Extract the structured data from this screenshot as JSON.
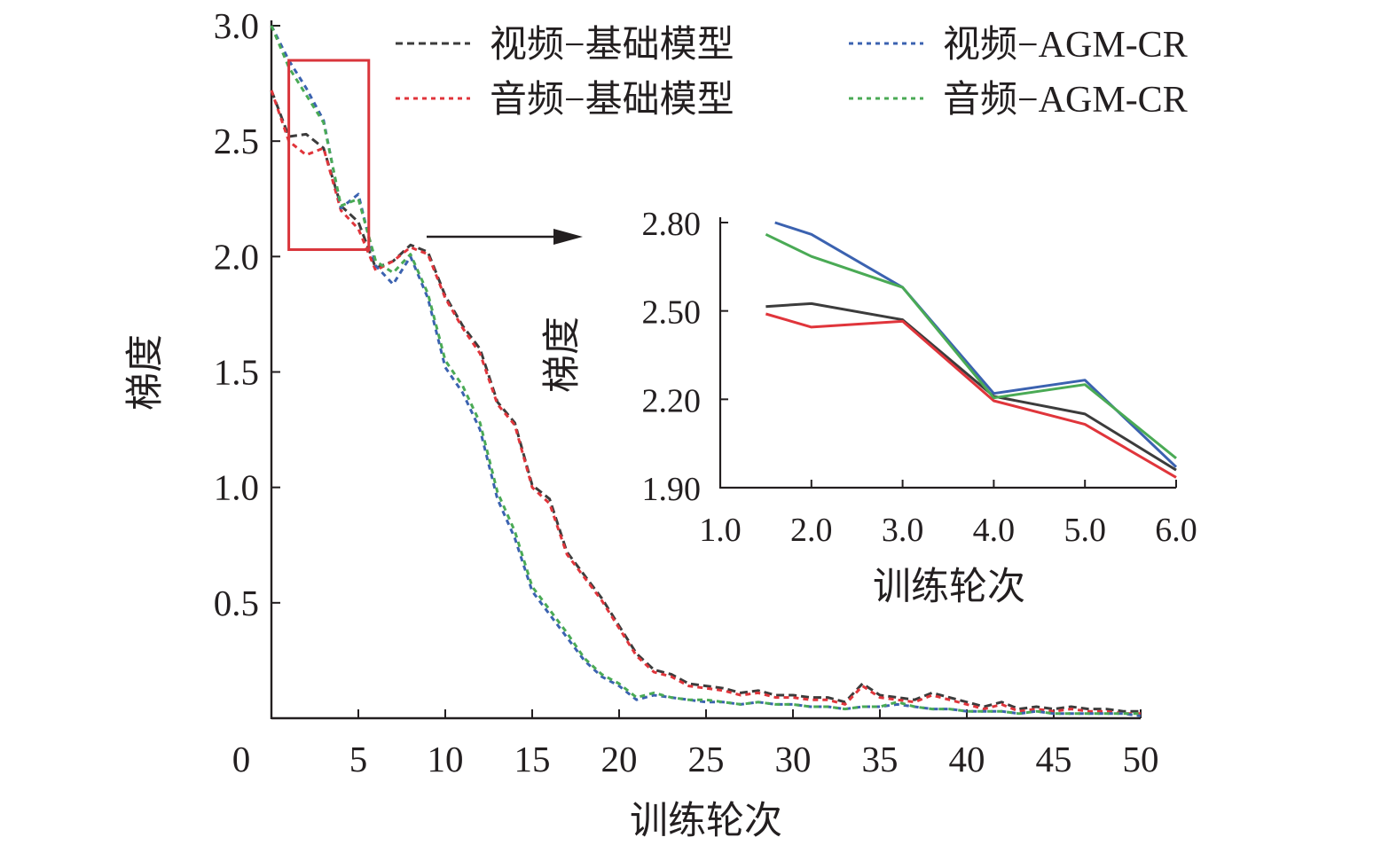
{
  "chart_data": [
    {
      "id": "main",
      "type": "line",
      "xlabel": "训练轮次",
      "ylabel": "梯度",
      "xlim": [
        0,
        50
      ],
      "ylim": [
        0,
        3.0
      ],
      "xticks": [
        0,
        5,
        10,
        15,
        20,
        25,
        30,
        35,
        40,
        45,
        50
      ],
      "xtick_labels": [
        "0",
        "5",
        "10",
        "15",
        "20",
        "25",
        "30",
        "35",
        "40",
        "45",
        "50"
      ],
      "yticks": [
        0.5,
        1.0,
        1.5,
        2.0,
        2.5,
        3.0
      ],
      "ytick_labels": [
        "0.5",
        "1.0",
        "1.5",
        "2.0",
        "2.5",
        "3.0"
      ],
      "series": [
        {
          "name": "视频−基础模型",
          "color": "#3c3c3c",
          "style": "dashed",
          "x": [
            0,
            1,
            2,
            3,
            4,
            5,
            6,
            7,
            8,
            9,
            10,
            11,
            12,
            13,
            14,
            15,
            16,
            17,
            18,
            19,
            20,
            21,
            22,
            23,
            24,
            25,
            26,
            27,
            28,
            29,
            30,
            31,
            32,
            33,
            34,
            35,
            36,
            37,
            38,
            39,
            40,
            41,
            42,
            43,
            44,
            45,
            46,
            47,
            48,
            49,
            50
          ],
          "values": [
            2.72,
            2.52,
            2.53,
            2.47,
            2.22,
            2.15,
            1.95,
            1.98,
            2.05,
            2.02,
            1.83,
            1.7,
            1.6,
            1.37,
            1.28,
            1.01,
            0.95,
            0.72,
            0.62,
            0.52,
            0.4,
            0.28,
            0.21,
            0.19,
            0.15,
            0.14,
            0.13,
            0.11,
            0.12,
            0.1,
            0.1,
            0.09,
            0.09,
            0.07,
            0.15,
            0.1,
            0.09,
            0.08,
            0.11,
            0.09,
            0.07,
            0.05,
            0.07,
            0.04,
            0.05,
            0.04,
            0.05,
            0.04,
            0.04,
            0.03,
            0.03
          ]
        },
        {
          "name": "音频−基础模型",
          "color": "#e0353b",
          "style": "dotted",
          "x": [
            0,
            1,
            2,
            3,
            4,
            5,
            6,
            7,
            8,
            9,
            10,
            11,
            12,
            13,
            14,
            15,
            16,
            17,
            18,
            19,
            20,
            21,
            22,
            23,
            24,
            25,
            26,
            27,
            28,
            29,
            30,
            31,
            32,
            33,
            34,
            35,
            36,
            37,
            38,
            39,
            40,
            41,
            42,
            43,
            44,
            45,
            46,
            47,
            48,
            49,
            50
          ],
          "values": [
            2.72,
            2.5,
            2.44,
            2.47,
            2.2,
            2.12,
            1.94,
            1.98,
            2.04,
            2.01,
            1.82,
            1.69,
            1.58,
            1.36,
            1.27,
            1.0,
            0.93,
            0.71,
            0.61,
            0.51,
            0.39,
            0.27,
            0.2,
            0.18,
            0.14,
            0.13,
            0.12,
            0.1,
            0.11,
            0.09,
            0.09,
            0.08,
            0.08,
            0.06,
            0.14,
            0.09,
            0.08,
            0.07,
            0.1,
            0.08,
            0.06,
            0.04,
            0.06,
            0.03,
            0.04,
            0.03,
            0.04,
            0.03,
            0.03,
            0.02,
            0.02
          ]
        },
        {
          "name": "视频−AGM-CR",
          "color": "#3b62b0",
          "style": "dotted",
          "x": [
            0,
            1,
            2,
            3,
            4,
            5,
            6,
            7,
            8,
            9,
            10,
            11,
            12,
            13,
            14,
            15,
            16,
            17,
            18,
            19,
            20,
            21,
            22,
            23,
            24,
            25,
            26,
            27,
            28,
            29,
            30,
            31,
            32,
            33,
            34,
            35,
            36,
            37,
            38,
            39,
            40,
            41,
            42,
            43,
            44,
            45,
            46,
            47,
            48,
            49,
            50
          ],
          "values": [
            3.0,
            2.85,
            2.73,
            2.59,
            2.21,
            2.27,
            1.96,
            1.88,
            2.0,
            1.82,
            1.52,
            1.41,
            1.25,
            0.95,
            0.78,
            0.55,
            0.45,
            0.35,
            0.25,
            0.18,
            0.14,
            0.08,
            0.1,
            0.09,
            0.08,
            0.07,
            0.07,
            0.06,
            0.07,
            0.06,
            0.06,
            0.05,
            0.05,
            0.04,
            0.05,
            0.05,
            0.06,
            0.05,
            0.04,
            0.04,
            0.03,
            0.03,
            0.03,
            0.02,
            0.03,
            0.02,
            0.02,
            0.02,
            0.02,
            0.02,
            0.01
          ]
        },
        {
          "name": "音频−AGM-CR",
          "color": "#4aaa55",
          "style": "dotted",
          "x": [
            0,
            1,
            2,
            3,
            4,
            5,
            6,
            7,
            8,
            9,
            10,
            11,
            12,
            13,
            14,
            15,
            16,
            17,
            18,
            19,
            20,
            21,
            22,
            23,
            24,
            25,
            26,
            27,
            28,
            29,
            30,
            31,
            32,
            33,
            34,
            35,
            36,
            37,
            38,
            39,
            40,
            41,
            42,
            43,
            44,
            45,
            46,
            47,
            48,
            49,
            50
          ],
          "values": [
            3.0,
            2.82,
            2.7,
            2.58,
            2.22,
            2.25,
            1.98,
            1.93,
            2.01,
            1.84,
            1.55,
            1.44,
            1.28,
            0.98,
            0.81,
            0.57,
            0.47,
            0.37,
            0.26,
            0.19,
            0.15,
            0.09,
            0.11,
            0.09,
            0.08,
            0.08,
            0.07,
            0.06,
            0.07,
            0.06,
            0.06,
            0.05,
            0.05,
            0.04,
            0.05,
            0.05,
            0.07,
            0.05,
            0.04,
            0.04,
            0.03,
            0.03,
            0.03,
            0.02,
            0.03,
            0.02,
            0.02,
            0.02,
            0.02,
            0.02,
            0.02
          ]
        }
      ]
    },
    {
      "id": "inset",
      "type": "line",
      "xlabel": "训练轮次",
      "ylabel": "梯度",
      "xlim": [
        1.0,
        6.0
      ],
      "ylim": [
        1.9,
        2.8
      ],
      "xticks": [
        1.0,
        2.0,
        3.0,
        4.0,
        5.0,
        6.0
      ],
      "xtick_labels": [
        "1.0",
        "2.0",
        "3.0",
        "4.0",
        "5.0",
        "6.0"
      ],
      "yticks": [
        1.9,
        2.2,
        2.5,
        2.8
      ],
      "ytick_labels": [
        "1.90",
        "2.20",
        "2.50",
        "2.80"
      ],
      "series": [
        {
          "name": "视频−基础模型",
          "color": "#3c3c3c",
          "style": "solid",
          "x": [
            1.5,
            2.0,
            3.0,
            4.0,
            5.0,
            6.0
          ],
          "values": [
            2.515,
            2.525,
            2.47,
            2.21,
            2.15,
            1.96
          ]
        },
        {
          "name": "音频−基础模型",
          "color": "#e0353b",
          "style": "solid",
          "x": [
            1.5,
            2.0,
            3.0,
            4.0,
            5.0,
            6.0
          ],
          "values": [
            2.49,
            2.445,
            2.465,
            2.195,
            2.115,
            1.935
          ]
        },
        {
          "name": "视频−AGM-CR",
          "color": "#3b62b0",
          "style": "solid",
          "x": [
            1.6,
            2.0,
            3.0,
            4.0,
            5.0,
            6.0
          ],
          "values": [
            2.8,
            2.76,
            2.58,
            2.22,
            2.265,
            1.97
          ]
        },
        {
          "name": "音频−AGM-CR",
          "color": "#4aaa55",
          "style": "solid",
          "x": [
            1.5,
            2.0,
            3.0,
            4.0,
            5.0,
            6.0
          ],
          "values": [
            2.76,
            2.685,
            2.58,
            2.205,
            2.25,
            2.0
          ]
        }
      ]
    }
  ],
  "legend": {
    "placement": "top",
    "entries": [
      {
        "label": "视频−基础模型",
        "color": "#3c3c3c",
        "style": "dashed"
      },
      {
        "label": "视频−AGM-CR",
        "color": "#3b62b0",
        "style": "dotted"
      },
      {
        "label": "音频−基础模型",
        "color": "#e0353b",
        "style": "dotted"
      },
      {
        "label": "音频−AGM-CR",
        "color": "#4aaa55",
        "style": "dotted"
      }
    ]
  },
  "zoom_box": {
    "color": "#d9353b",
    "x_range": [
      1,
      5.6
    ],
    "y_range": [
      2.03,
      2.85
    ],
    "arrow_color": "#231f20"
  }
}
